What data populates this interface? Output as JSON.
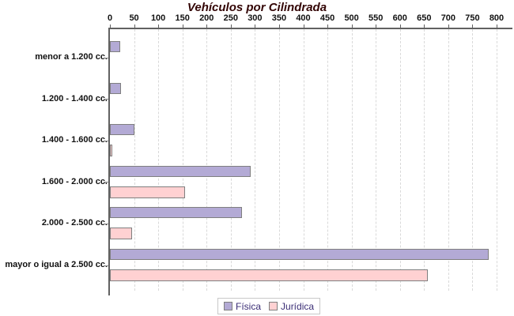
{
  "title": "Vehículos por Cilindrada",
  "chart_data": {
    "type": "bar",
    "orientation": "horizontal",
    "title": "Vehículos por Cilindrada",
    "categories": [
      "menor a 1.200 cc.",
      "1.200 - 1.400 cc.",
      "1.400 - 1.600 cc.",
      "1.600 - 2.000 cc.",
      "2.000 - 2.500 cc.",
      "mayor o igual a 2.500 cc."
    ],
    "series": [
      {
        "name": "Física",
        "color": "#b3aad5",
        "border_color": "#7f7f7f",
        "values": [
          21,
          23,
          50,
          292,
          273,
          783
        ]
      },
      {
        "name": "Jurídica",
        "color": "#ffd1d2",
        "border_color": "#7f7f7f",
        "values": [
          0,
          0,
          5,
          155,
          45,
          657
        ]
      }
    ],
    "xlim": [
      0,
      800
    ],
    "x_tick_step": 50,
    "x_tick_labels": [
      "0",
      "50",
      "100",
      "150",
      "200",
      "250",
      "300",
      "350",
      "400",
      "450",
      "500",
      "550",
      "600",
      "650",
      "700",
      "750",
      "800"
    ],
    "xlabel": "",
    "ylabel": "",
    "grid": "vertical-dashed",
    "legend_position": "bottom-center"
  },
  "colors": {
    "title_text": "#330505",
    "axis_line": "#616161",
    "gridline": "#d9d9d9",
    "tick_text": "#111111",
    "category_text": "#111111",
    "legend_text": "#3a2d75",
    "legend_border": "#c8c8c8",
    "background": "#ffffff",
    "fisica_fill": "#b3aad5",
    "juridica_fill": "#ffd1d2",
    "bar_border": "#7f7f7f"
  }
}
